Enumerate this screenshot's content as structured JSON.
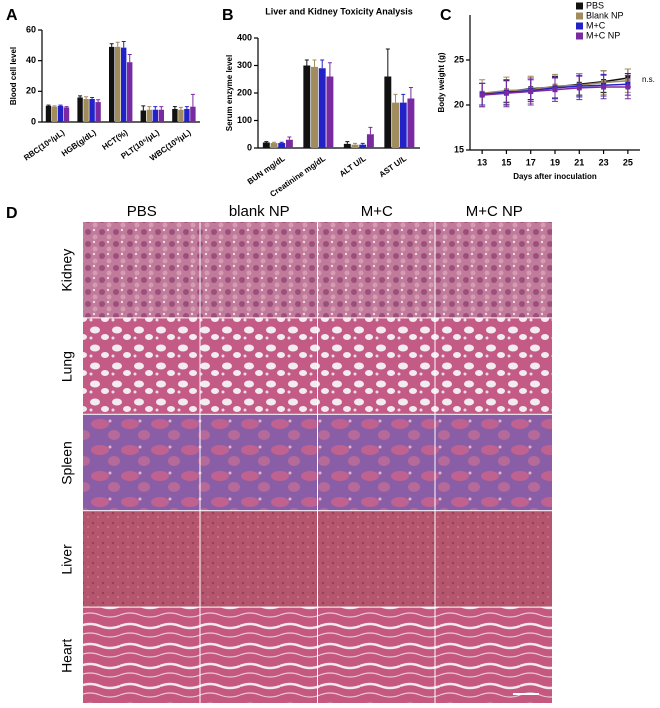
{
  "chart_data": [
    {
      "type": "bar",
      "panel": "A",
      "y_label": "Blood cell level",
      "categories": [
        "RBC(10⁶/μL)",
        "HGB(g/dL)",
        "HCT(%)",
        "PLT(10⁵/μL)",
        "WBC(10³/μL)"
      ],
      "ylim": [
        0,
        60
      ],
      "yticks": [
        0,
        20,
        40,
        60
      ],
      "series": [
        {
          "color": "#111111",
          "values": [
            10.5,
            16,
            49,
            7.5,
            8.5
          ],
          "errors": [
            0.5,
            1,
            2,
            3,
            1.5
          ]
        },
        {
          "color": "#a08c5c",
          "values": [
            10,
            15,
            49,
            8,
            8
          ],
          "errors": [
            0.5,
            1.5,
            3,
            2,
            1.5
          ]
        },
        {
          "color": "#2222c8",
          "values": [
            10.5,
            15,
            48.5,
            8,
            8.5
          ],
          "errors": [
            0.5,
            1,
            4,
            2,
            1.5
          ]
        },
        {
          "color": "#7a2aa0",
          "values": [
            9.5,
            13,
            39,
            8,
            10
          ],
          "errors": [
            0.5,
            1.5,
            5,
            2,
            8
          ]
        }
      ]
    },
    {
      "type": "bar",
      "panel": "B",
      "title": "Liver and Kidney Toxicity Analysis",
      "y_label": "Serum enzyme level",
      "categories": [
        "BUN mg/dL",
        "Creatinine mg/dL",
        "ALT U/L",
        "AST U/L"
      ],
      "ylim": [
        0,
        400
      ],
      "yticks": [
        0,
        100,
        200,
        300,
        400
      ],
      "series": [
        {
          "color": "#111111",
          "values": [
            20,
            300,
            15,
            260
          ],
          "errors": [
            3,
            20,
            8,
            100
          ]
        },
        {
          "color": "#a08c5c",
          "values": [
            18,
            295,
            12,
            165
          ],
          "errors": [
            3,
            25,
            5,
            30
          ]
        },
        {
          "color": "#2222c8",
          "values": [
            18,
            290,
            12,
            165
          ],
          "errors": [
            3,
            30,
            5,
            30
          ]
        },
        {
          "color": "#7a2aa0",
          "values": [
            30,
            260,
            50,
            180
          ],
          "errors": [
            10,
            50,
            25,
            40
          ]
        }
      ]
    },
    {
      "type": "line",
      "panel": "C",
      "x_label": "Days after inoculation",
      "y_label": "Body weight (g)",
      "x": [
        13,
        15,
        17,
        19,
        21,
        23,
        25
      ],
      "xlim": [
        12,
        26
      ],
      "xticks": [
        13,
        15,
        17,
        19,
        21,
        23,
        25
      ],
      "ylim": [
        15,
        30
      ],
      "yticks": [
        15,
        20,
        25
      ],
      "annotation": "n.s.",
      "legend": "top-right",
      "series": [
        {
          "name": "PBS",
          "color": "#111111",
          "values": [
            21.2,
            21.5,
            21.8,
            22.0,
            22.3,
            22.6,
            23.0
          ],
          "errors": [
            1.2,
            1.2,
            1.2,
            1.2,
            1.2,
            1.2,
            1.0
          ]
        },
        {
          "name": "Blank NP",
          "color": "#a08c5c",
          "values": [
            21.3,
            21.6,
            21.7,
            22.1,
            22.2,
            22.5,
            22.7
          ],
          "errors": [
            1.5,
            1.5,
            1.5,
            1.3,
            1.3,
            1.3,
            1.3
          ]
        },
        {
          "name": "M+C",
          "color": "#2222c8",
          "values": [
            21.2,
            21.4,
            21.6,
            21.9,
            22.1,
            22.2,
            22.3
          ],
          "errors": [
            1.2,
            1.4,
            1.2,
            1.2,
            1.2,
            1.2,
            1.2
          ]
        },
        {
          "name": "M+C NP",
          "color": "#7a2aa0",
          "values": [
            21.1,
            21.3,
            21.5,
            21.7,
            21.9,
            22.0,
            22.0
          ],
          "errors": [
            1.3,
            1.5,
            1.5,
            1.3,
            1.3,
            1.3,
            1.3
          ]
        }
      ]
    }
  ],
  "histology": {
    "panel": "D",
    "columns": [
      "PBS",
      "blank NP",
      "M+C",
      "M+C NP"
    ],
    "rows": [
      "Kidney",
      "Lung",
      "Spleen",
      "Liver",
      "Heart"
    ]
  }
}
